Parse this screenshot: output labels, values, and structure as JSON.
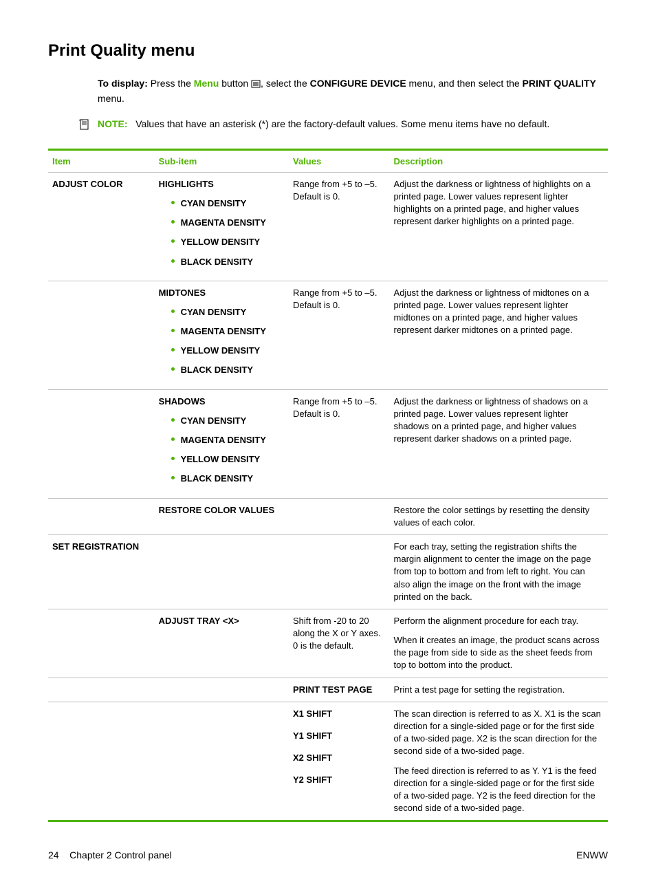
{
  "colors": {
    "accent": "#4fb400",
    "text": "#000000",
    "rule_gray": "#bfbfbf"
  },
  "heading": "Print Quality menu",
  "intro": {
    "lead_bold": "To display:",
    "part1": " Press the ",
    "menu_word": "Menu",
    "part2": " button ",
    "part3": ", select the ",
    "configure_device": "CONFIGURE DEVICE",
    "part4": " menu, and then select the ",
    "print_quality": "PRINT QUALITY",
    "part5": " menu."
  },
  "note": {
    "label": "NOTE:",
    "text": "Values that have an asterisk (*) are the factory-default values. Some menu items have no default."
  },
  "table": {
    "headers": {
      "item": "Item",
      "subitem": "Sub-item",
      "values": "Values",
      "description": "Description"
    },
    "adjust_color": {
      "item": "ADJUST COLOR",
      "groups": [
        {
          "title": "HIGHLIGHTS",
          "bullets": [
            "CYAN DENSITY",
            "MAGENTA DENSITY",
            "YELLOW DENSITY",
            "BLACK DENSITY"
          ],
          "values": "Range from +5 to –5. Default is 0.",
          "description": "Adjust the darkness or lightness of highlights on a printed page. Lower values represent lighter highlights on a printed page, and higher values represent darker highlights on a printed page."
        },
        {
          "title": "MIDTONES",
          "bullets": [
            "CYAN DENSITY",
            "MAGENTA DENSITY",
            "YELLOW DENSITY",
            "BLACK DENSITY"
          ],
          "values": "Range from +5 to –5. Default is 0.",
          "description": "Adjust the darkness or lightness of midtones on a printed page. Lower values represent lighter midtones on a printed page, and higher values represent darker midtones on a printed page."
        },
        {
          "title": "SHADOWS",
          "bullets": [
            "CYAN DENSITY",
            "MAGENTA DENSITY",
            "YELLOW DENSITY",
            "BLACK DENSITY"
          ],
          "values": "Range from +5 to –5. Default is 0.",
          "description": "Adjust the darkness or lightness of shadows on a printed page. Lower values represent lighter shadows on a printed page, and higher values represent darker shadows on a printed page."
        }
      ],
      "restore": {
        "title": "RESTORE COLOR VALUES",
        "description": "Restore the color settings by resetting the density values of each color."
      }
    },
    "set_registration": {
      "item": "SET REGISTRATION",
      "description": "For each tray, setting the registration shifts the margin alignment to center the image on the page from top to bottom and from left to right. You can also align the image on the front with the image printed on the back."
    },
    "adjust_tray": {
      "title": "ADJUST TRAY <X>",
      "values": "Shift from -20 to 20 along the X or Y axes. 0 is the default.",
      "desc_p1": "Perform the alignment procedure for each tray.",
      "desc_p2": "When it creates an image, the product scans across the page from side to side as the sheet feeds from top to bottom into the product."
    },
    "print_test": {
      "title": "PRINT TEST PAGE",
      "description": "Print a test page for setting the registration."
    },
    "shifts": {
      "items": [
        "X1 SHIFT",
        "Y1 SHIFT",
        "X2 SHIFT",
        "Y2 SHIFT"
      ],
      "desc_p1": "The scan direction is referred to as X. X1 is the scan direction for a single-sided page or for the first side of a two-sided page. X2 is the scan direction for the second side of a two-sided page.",
      "desc_p2": "The feed direction is referred to as Y. Y1 is the feed direction for a single-sided page or for the first side of a two-sided page. Y2 is the feed direction for the second side of a two-sided page."
    }
  },
  "footer": {
    "left_page": "24",
    "left_chapter": "Chapter 2   Control panel",
    "right": "ENWW"
  }
}
